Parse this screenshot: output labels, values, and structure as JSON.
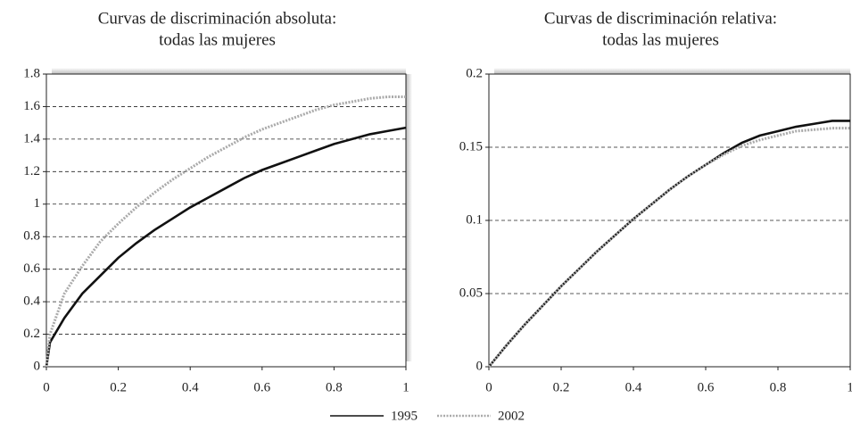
{
  "chart_data": [
    {
      "type": "line",
      "title": [
        "Curvas de discriminación absoluta:",
        "todas las mujeres"
      ],
      "x": [
        0,
        0.01,
        0.05,
        0.1,
        0.15,
        0.2,
        0.25,
        0.3,
        0.35,
        0.4,
        0.45,
        0.5,
        0.55,
        0.6,
        0.65,
        0.7,
        0.75,
        0.8,
        0.85,
        0.9,
        0.95,
        1
      ],
      "series": [
        {
          "name": "1995",
          "color": "#111111",
          "values": [
            0,
            0.15,
            0.3,
            0.45,
            0.56,
            0.67,
            0.76,
            0.84,
            0.91,
            0.98,
            1.04,
            1.1,
            1.16,
            1.21,
            1.25,
            1.29,
            1.33,
            1.37,
            1.4,
            1.43,
            1.45,
            1.47
          ]
        },
        {
          "name": "2002",
          "color": "#aaaaaa",
          "values": [
            0,
            0.2,
            0.45,
            0.62,
            0.77,
            0.88,
            0.98,
            1.07,
            1.15,
            1.22,
            1.29,
            1.35,
            1.41,
            1.46,
            1.5,
            1.54,
            1.58,
            1.61,
            1.63,
            1.65,
            1.66,
            1.66
          ]
        }
      ],
      "xlim": [
        0,
        1
      ],
      "xticks": [
        0,
        0.2,
        0.4,
        0.6,
        0.8,
        1
      ],
      "ylim": [
        0,
        1.8
      ],
      "yticks": [
        0,
        0.2,
        0.4,
        0.6,
        0.8,
        1,
        1.2,
        1.4,
        1.6,
        1.8
      ],
      "grid": true
    },
    {
      "type": "line",
      "title": [
        "Curvas de discriminación relativa:",
        "todas las mujeres"
      ],
      "x": [
        0,
        0.01,
        0.05,
        0.1,
        0.15,
        0.2,
        0.25,
        0.3,
        0.35,
        0.4,
        0.45,
        0.5,
        0.55,
        0.6,
        0.65,
        0.7,
        0.75,
        0.8,
        0.85,
        0.9,
        0.95,
        1
      ],
      "series": [
        {
          "color": "#111111",
          "values": [
            0,
            0.003,
            0.015,
            0.029,
            0.042,
            0.055,
            0.067,
            0.079,
            0.09,
            0.101,
            0.111,
            0.121,
            0.13,
            0.138,
            0.146,
            0.153,
            0.158,
            0.161,
            0.164,
            0.166,
            0.168,
            0.168
          ]
        },
        {
          "color": "#aaaaaa",
          "values": [
            0,
            0.003,
            0.015,
            0.029,
            0.042,
            0.055,
            0.067,
            0.079,
            0.09,
            0.101,
            0.111,
            0.121,
            0.13,
            0.138,
            0.145,
            0.151,
            0.155,
            0.158,
            0.161,
            0.162,
            0.163,
            0.163
          ]
        }
      ],
      "xlim": [
        0,
        1
      ],
      "xticks": [
        0,
        0.2,
        0.4,
        0.6,
        0.8,
        1
      ],
      "ylim": [
        0,
        0.2
      ],
      "yticks": [
        0,
        0.05,
        0.1,
        0.15,
        0.2
      ],
      "grid": true
    }
  ]
}
